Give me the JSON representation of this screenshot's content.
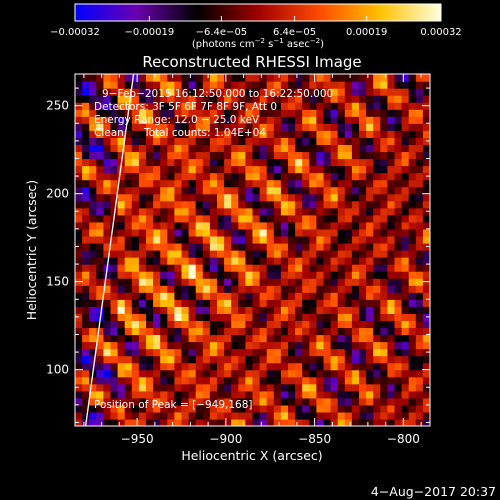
{
  "chart_data": {
    "type": "heatmap",
    "title": "Reconstructed RHESSI Image",
    "xlabel": "Heliocentric X (arcsec)",
    "ylabel": "Heliocentric Y (arcsec)",
    "xlim": [
      -985,
      -785
    ],
    "ylim": [
      68,
      268
    ],
    "xticks": [
      -950,
      -900,
      -850,
      -800
    ],
    "xtick_labels": [
      "−950",
      "−900",
      "−850",
      "−800"
    ],
    "yticks": [
      100,
      150,
      200,
      250
    ],
    "ytick_labels": [
      "100",
      "150",
      "200",
      "250"
    ],
    "grid": false,
    "colorbar": {
      "min": -0.00032,
      "max": 0.00032,
      "colors": [
        "#0000ff",
        "#6a00b0",
        "#000000",
        "#a00000",
        "#ff4a00",
        "#ffc200",
        "#ffffe0"
      ],
      "tick_values": [
        -0.00032,
        -0.00019,
        -6.4e-05,
        6.4e-05,
        0.00019,
        0.00032
      ],
      "tick_labels": [
        "−0.00032",
        "−0.00019",
        "−6.4e−05",
        "6.4e−05",
        "0.00019",
        "0.00032"
      ],
      "unit_parts": [
        "(photons cm",
        "−2",
        " s",
        "−1",
        " asec",
        "−2",
        ")"
      ]
    },
    "annotations": {
      "time": "9−Feb−2015 16:12:50.000 to 16:22:50.000",
      "detectors": "Detectors: 3F 5F 6F 7F 8F 9F, Att 0",
      "energy": "Energy Range: 12.0 − 25.0 keV",
      "method": "Clean",
      "counts": "Total counts: 1.04E+04",
      "peak": "Position of Peak = [−949,168]"
    },
    "peak_position": [
      -949,
      168
    ],
    "limb_line": {
      "x": [
        -952,
        -979
      ],
      "y": [
        268,
        68
      ]
    },
    "map_description": "Fringe pattern of alternating positive (yellow/orange) and negative (blue/purple) blobs running diagonally from upper-left to lower-right; strongest emission near [−949,168].",
    "footer": "4−Aug−2017 20:37"
  }
}
